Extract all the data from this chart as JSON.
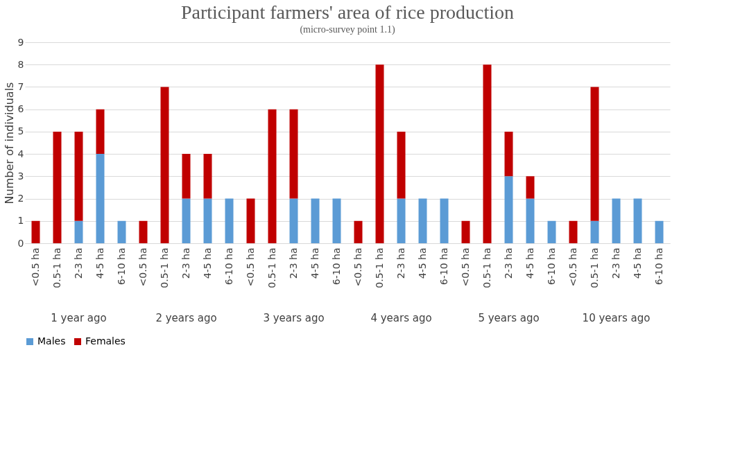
{
  "chart_data": {
    "type": "bar",
    "title": "Participant farmers' area of rice production",
    "subtitle": "(micro-survey point 1.1)",
    "ylabel": "Number of individuals",
    "categories": [
      "<0.5 ha",
      "0.5-1 ha",
      "2-3 ha",
      "4-5 ha",
      "6-10 ha",
      "<0.5 ha",
      "0.5-1 ha",
      "2-3 ha",
      "4-5 ha",
      "6-10 ha",
      "<0.5 ha",
      "0.5-1 ha",
      "2-3 ha",
      "4-5 ha",
      "6-10 ha",
      "<0.5 ha",
      "0.5-1 ha",
      "2-3 ha",
      "4-5 ha",
      "6-10 ha",
      "<0.5 ha",
      "0.5-1 ha",
      "2-3 ha",
      "4-5 ha",
      "6-10 ha",
      "<0.5 ha",
      "0.5-1 ha",
      "2-3 ha",
      "4-5 ha",
      "6-10 ha"
    ],
    "annotations": [
      "1 year ago",
      "2 years ago",
      "3 years ago",
      "4 years ago",
      "5 years ago",
      "10 years ago"
    ],
    "stacked": true,
    "series": [
      {
        "name": "Males",
        "color": "#5b9bd5",
        "values": [
          0,
          0,
          1,
          4,
          1,
          0,
          0,
          2,
          2,
          2,
          0,
          0,
          2,
          2,
          2,
          0,
          0,
          2,
          2,
          2,
          0,
          0,
          3,
          2,
          1,
          0,
          1,
          2,
          2,
          1
        ]
      },
      {
        "name": "Females",
        "color": "#c00000",
        "values": [
          1,
          5,
          4,
          2,
          0,
          1,
          7,
          2,
          2,
          0,
          2,
          6,
          4,
          0,
          0,
          1,
          8,
          3,
          0,
          0,
          1,
          8,
          2,
          1,
          0,
          1,
          6,
          0,
          0,
          0
        ]
      }
    ],
    "ylim": [
      0,
      9
    ],
    "yticks": [
      0,
      1,
      2,
      3,
      4,
      5,
      6,
      7,
      8,
      9
    ],
    "grid": "y",
    "legend": "bottom"
  }
}
